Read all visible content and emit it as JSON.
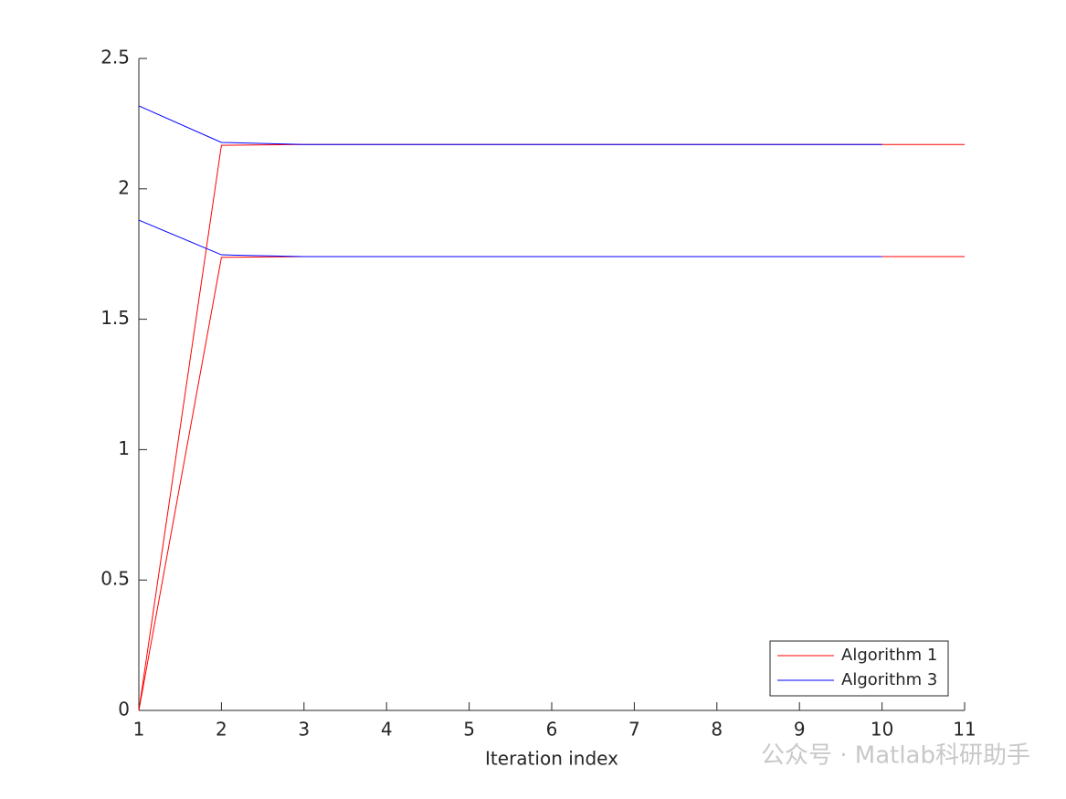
{
  "chart_data": {
    "type": "line",
    "xlabel": "Iteration index",
    "x": [
      1,
      2,
      3,
      4,
      5,
      6,
      7,
      8,
      9,
      10,
      11
    ],
    "xlim": [
      1,
      11
    ],
    "xticks": [
      1,
      2,
      3,
      4,
      5,
      6,
      7,
      8,
      9,
      10,
      11
    ],
    "ylim": [
      0,
      2.5
    ],
    "yticks": [
      0,
      0.5,
      1,
      1.5,
      2,
      2.5
    ],
    "legend": "lower right",
    "series": [
      {
        "name": "Algorithm 1",
        "color": "#ff0000",
        "values": [
          [
            0,
            2.167,
            2.17,
            2.17,
            2.17,
            2.17,
            2.17,
            2.17,
            2.17,
            2.17,
            2.17
          ],
          [
            0,
            1.737,
            1.74,
            1.74,
            1.74,
            1.74,
            1.74,
            1.74,
            1.74,
            1.74,
            1.74
          ]
        ]
      },
      {
        "name": "Algorithm 3",
        "color": "#0000ff",
        "values": [
          [
            2.318,
            2.178,
            2.17,
            2.17,
            2.17,
            2.17,
            2.17,
            2.17,
            2.17,
            2.17,
            null
          ],
          [
            1.88,
            1.747,
            1.74,
            1.74,
            1.74,
            1.74,
            1.74,
            1.74,
            1.74,
            1.74,
            null
          ]
        ]
      }
    ],
    "watermark": "公众号 · Matlab科研助手"
  }
}
